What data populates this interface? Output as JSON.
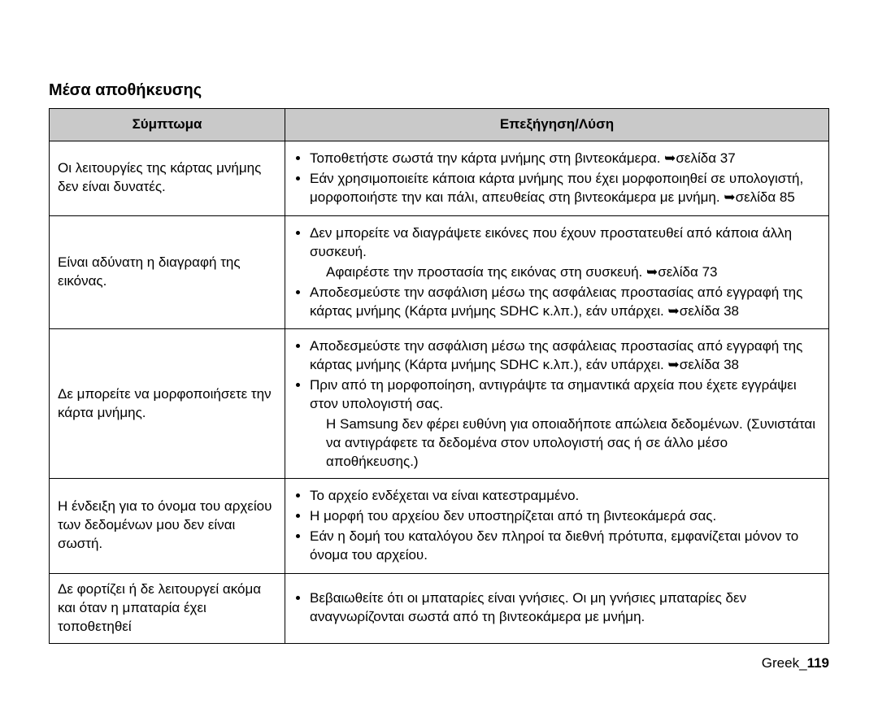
{
  "section_title": "Μέσα αποθήκευσης",
  "headers": {
    "col1": "Σύμπτωμα",
    "col2": "Επεξήγηση/Λύση"
  },
  "rows": [
    {
      "symptom": "Οι λειτουργίες της κάρτας μνήμης δεν είναι δυνατές.",
      "items": [
        {
          "text": "Τοποθετήστε σωστά την κάρτα μνήμης στη βιντεοκάμερα. ➥σελίδα 37"
        },
        {
          "text": "Εάν χρησιμοποιείτε κάποια κάρτα μνήμης που έχει μορφοποιηθεί σε υπολογιστή, μορφοποιήστε την και πάλι, απευθείας στη βιντεοκάμερα με μνήμη. ➥σελίδα 85"
        }
      ]
    },
    {
      "symptom": "Είναι αδύνατη η διαγραφή της εικόνας.",
      "items": [
        {
          "text": "Δεν μπορείτε να διαγράψετε εικόνες που έχουν προστατευθεί από κάποια άλλη συσκευή.",
          "after": "Αφαιρέστε την προστασία της εικόνας στη συσκευή. ➥σελίδα 73"
        },
        {
          "text": "Αποδεσμεύστε την ασφάλιση μέσω της ασφάλειας προστασίας από εγγραφή της κάρτας μνήμης (Κάρτα μνήμης SDHC κ.λπ.), εάν υπάρχει. ➥σελίδα 38"
        }
      ]
    },
    {
      "symptom": "Δε μπορείτε να μορφοποιήσετε την κάρτα μνήμης.",
      "items": [
        {
          "text": "Αποδεσμεύστε την ασφάλιση μέσω της ασφάλειας προστασίας από εγγραφή της κάρτας μνήμης (Κάρτα μνήμης SDHC κ.λπ.), εάν υπάρχει. ➥σελίδα 38"
        },
        {
          "text": "Πριν από τη μορφοποίηση, αντιγράψτε τα σημαντικά αρχεία που έχετε εγγράψει στον υπολογιστή σας.",
          "after": "Η Samsung δεν φέρει ευθύνη για οποιαδήποτε απώλεια δεδομένων. (Συνιστάται να αντιγράφετε τα δεδομένα στον υπολογιστή σας ή σε άλλο μέσο αποθήκευσης.)"
        }
      ]
    },
    {
      "symptom": "Η ένδειξη για το όνομα του αρχείου των δεδομένων μου δεν είναι σωστή.",
      "items": [
        {
          "text": "Το αρχείο ενδέχεται να είναι κατεστραμμένο."
        },
        {
          "text": "Η μορφή του αρχείου δεν υποστηρίζεται από τη βιντεοκάμερά σας."
        },
        {
          "text": "Εάν η δομή του καταλόγου δεν πληροί τα διεθνή πρότυπα, εμφανίζεται μόνον το όνομα του αρχείου."
        }
      ]
    },
    {
      "symptom": "Δε φορτίζει ή δε λειτουργεί ακόμα και όταν η μπαταρία έχει τοποθετηθεί",
      "items": [
        {
          "text": "Βεβαιωθείτε ότι οι μπαταρίες είναι γνήσιες. Οι μη γνήσιες μπαταρίες δεν αναγνωρίζονται σωστά από τη βιντεοκάμερα με μνήμη."
        }
      ]
    }
  ],
  "footer": {
    "lang": "Greek",
    "sep": "_",
    "page": "119"
  }
}
